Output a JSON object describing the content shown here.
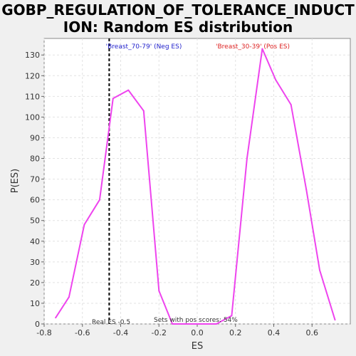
{
  "chart_data": {
    "type": "line",
    "title": "GOBP_REGULATION_OF_TOLERANCE_INDUCTION: Random ES distribution",
    "title_lines": [
      "GOBP_REGULATION_OF_TOLERANCE_INDUCT",
      "ION: Random ES distribution"
    ],
    "xlabel": "ES",
    "ylabel": "P(ES)",
    "xlim": [
      -0.8,
      0.8
    ],
    "ylim": [
      0,
      138
    ],
    "x_ticks": [
      -0.8,
      -0.6,
      -0.4,
      -0.2,
      0.0,
      0.2,
      0.4,
      0.6
    ],
    "x_tick_labels": [
      "-0.8",
      "-0.6",
      "-0.4",
      "-0.2",
      "0.0",
      "0.2",
      "0.4",
      "0.6"
    ],
    "y_ticks": [
      0,
      10,
      20,
      30,
      40,
      50,
      60,
      70,
      80,
      90,
      100,
      110,
      120,
      130
    ],
    "y_tick_labels": [
      "0",
      "10",
      "20",
      "30",
      "40",
      "50",
      "60",
      "70",
      "80",
      "90",
      "100",
      "110",
      "120",
      "130"
    ],
    "grid": true,
    "series": [
      {
        "color": "#ee44ee",
        "points": [
          [
            -0.74,
            3
          ],
          [
            -0.67,
            13
          ],
          [
            -0.59,
            48
          ],
          [
            -0.51,
            60
          ],
          [
            -0.44,
            109
          ],
          [
            -0.36,
            113
          ],
          [
            -0.28,
            103
          ],
          [
            -0.2,
            16
          ],
          [
            -0.13,
            0
          ],
          [
            -0.05,
            0
          ],
          [
            0.03,
            0
          ],
          [
            0.1,
            0
          ],
          [
            0.18,
            4
          ],
          [
            0.26,
            80
          ],
          [
            0.34,
            133
          ],
          [
            0.41,
            118
          ],
          [
            0.49,
            106
          ],
          [
            0.57,
            65
          ],
          [
            0.64,
            26
          ],
          [
            0.72,
            2
          ]
        ]
      }
    ],
    "real_es": -0.46,
    "annotations": {
      "neg_label": "'Breast_70-79' (Neg ES)",
      "pos_label": "'Breast_30-39' (Pos ES)",
      "real_es_label": "Real ES -0.5",
      "pos_scores_label": "Sets with pos scores: 54%"
    },
    "colors": {
      "neg_label": "#2222cc",
      "pos_label": "#dd2222",
      "line": "#ee44ee",
      "real_es_line": "#000000"
    }
  }
}
